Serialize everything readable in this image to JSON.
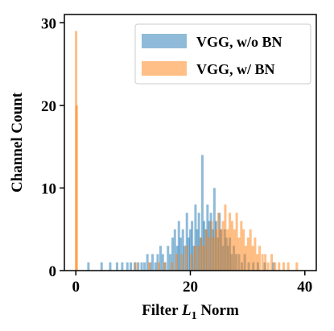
{
  "chart_data": {
    "type": "histogram",
    "xlabel_prefix": "Filter ",
    "xlabel_var": "L",
    "xlabel_sub": "1",
    "xlabel_suffix": " Norm",
    "ylabel": "Channel Count",
    "xlim": [
      -2,
      42
    ],
    "ylim": [
      0,
      31
    ],
    "xticks": [
      0,
      20,
      40
    ],
    "yticks": [
      0,
      10,
      20,
      30
    ],
    "grid": false,
    "legend_position": "top-right",
    "bin_width": 0.1,
    "series": [
      {
        "name": "VGG, w/o BN",
        "color": "#1f77b4",
        "alpha": 0.5,
        "bins": [
          [
            2.2,
            1
          ],
          [
            4.5,
            1
          ],
          [
            6.0,
            1
          ],
          [
            7.2,
            1
          ],
          [
            8.1,
            1
          ],
          [
            9.0,
            1
          ],
          [
            9.6,
            1
          ],
          [
            10.3,
            1
          ],
          [
            10.9,
            1
          ],
          [
            11.5,
            1
          ],
          [
            12.0,
            1
          ],
          [
            12.5,
            2
          ],
          [
            13.0,
            1
          ],
          [
            13.4,
            2
          ],
          [
            13.9,
            1
          ],
          [
            14.3,
            2
          ],
          [
            14.8,
            3
          ],
          [
            15.2,
            2
          ],
          [
            15.6,
            1
          ],
          [
            16.1,
            3
          ],
          [
            16.5,
            2
          ],
          [
            16.9,
            4
          ],
          [
            17.3,
            5
          ],
          [
            17.7,
            3
          ],
          [
            18.0,
            6
          ],
          [
            18.3,
            4
          ],
          [
            18.7,
            5
          ],
          [
            19.0,
            3
          ],
          [
            19.4,
            7
          ],
          [
            19.7,
            4
          ],
          [
            20.0,
            5
          ],
          [
            20.3,
            6
          ],
          [
            20.6,
            3
          ],
          [
            20.9,
            8
          ],
          [
            21.2,
            5
          ],
          [
            21.5,
            7
          ],
          [
            21.8,
            4
          ],
          [
            22.1,
            14
          ],
          [
            22.4,
            6
          ],
          [
            22.7,
            5
          ],
          [
            23.0,
            8
          ],
          [
            23.3,
            6
          ],
          [
            23.6,
            7
          ],
          [
            23.9,
            5
          ],
          [
            24.2,
            10
          ],
          [
            24.5,
            6
          ],
          [
            24.8,
            4
          ],
          [
            25.1,
            7
          ],
          [
            25.4,
            5
          ],
          [
            25.7,
            3
          ],
          [
            26.0,
            5
          ],
          [
            26.3,
            4
          ],
          [
            26.6,
            3
          ],
          [
            26.9,
            4
          ],
          [
            27.2,
            2
          ],
          [
            27.6,
            3
          ],
          [
            28.0,
            2
          ],
          [
            28.5,
            2
          ],
          [
            29.0,
            1
          ],
          [
            29.5,
            2
          ],
          [
            30.2,
            1
          ],
          [
            31.0,
            1
          ],
          [
            31.8,
            1
          ],
          [
            33.0,
            1
          ],
          [
            34.5,
            1
          ]
        ]
      },
      {
        "name": "VGG, w/ BN",
        "color": "#ff7f0e",
        "alpha": 0.5,
        "bins": [
          [
            0.05,
            29
          ],
          [
            0.15,
            20
          ],
          [
            10.5,
            1
          ],
          [
            12.8,
            1
          ],
          [
            14.5,
            1
          ],
          [
            15.5,
            1
          ],
          [
            16.8,
            1
          ],
          [
            17.6,
            2
          ],
          [
            18.5,
            2
          ],
          [
            19.3,
            3
          ],
          [
            20.2,
            2
          ],
          [
            20.8,
            3
          ],
          [
            21.4,
            3
          ],
          [
            21.9,
            4
          ],
          [
            22.3,
            3
          ],
          [
            22.8,
            5
          ],
          [
            23.2,
            4
          ],
          [
            23.7,
            6
          ],
          [
            24.1,
            4
          ],
          [
            24.5,
            5
          ],
          [
            24.9,
            7
          ],
          [
            25.3,
            5
          ],
          [
            25.7,
            6
          ],
          [
            26.1,
            8
          ],
          [
            26.5,
            5
          ],
          [
            26.9,
            7
          ],
          [
            27.3,
            6
          ],
          [
            27.7,
            5
          ],
          [
            28.1,
            7
          ],
          [
            28.5,
            4
          ],
          [
            28.9,
            6
          ],
          [
            29.3,
            5
          ],
          [
            29.7,
            3
          ],
          [
            30.1,
            4
          ],
          [
            30.5,
            5
          ],
          [
            30.9,
            3
          ],
          [
            31.3,
            4
          ],
          [
            31.7,
            2
          ],
          [
            32.1,
            3
          ],
          [
            32.6,
            2
          ],
          [
            33.1,
            2
          ],
          [
            33.6,
            1
          ],
          [
            34.2,
            2
          ],
          [
            34.8,
            1
          ],
          [
            35.5,
            1
          ],
          [
            36.3,
            1
          ],
          [
            37.1,
            1
          ],
          [
            38.6,
            1
          ]
        ]
      }
    ]
  }
}
